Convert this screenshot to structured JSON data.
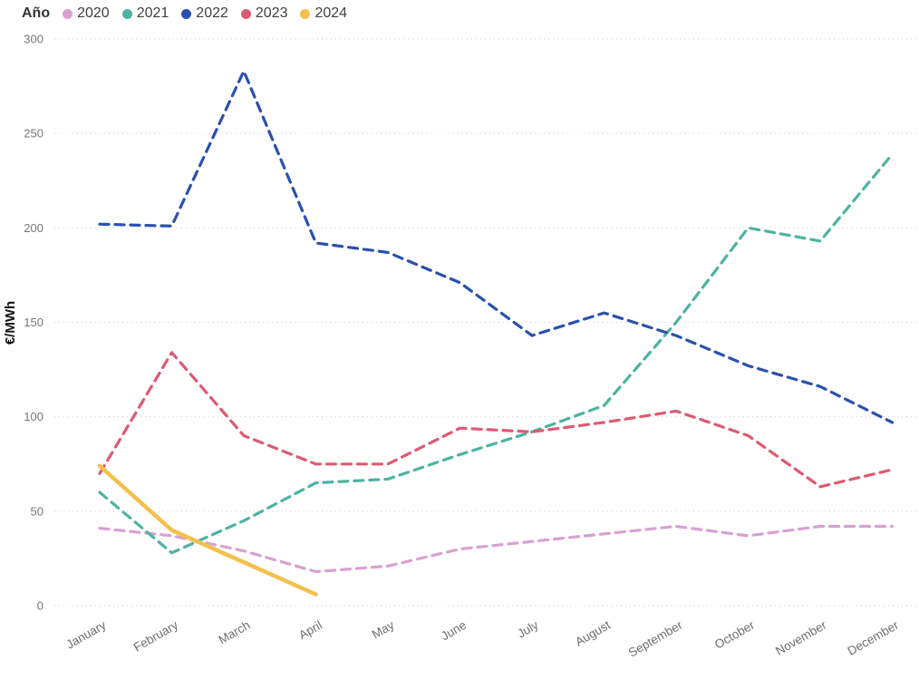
{
  "legend": {
    "title": "Año"
  },
  "chart_data": {
    "type": "line",
    "title": "",
    "legend_title": "Año",
    "legend_position": "top-left",
    "xlabel": "",
    "ylabel": "€/MWh",
    "ylim": [
      0,
      300
    ],
    "y_ticks": [
      0,
      50,
      100,
      150,
      200,
      250,
      300
    ],
    "grid": "horizontal-dotted",
    "categories": [
      "January",
      "February",
      "March",
      "April",
      "May",
      "June",
      "July",
      "August",
      "September",
      "October",
      "November",
      "December"
    ],
    "series": [
      {
        "name": "2020",
        "color": "#d9a0d2",
        "line_style": "dashed",
        "values": [
          41,
          37,
          29,
          18,
          21,
          30,
          34,
          38,
          42,
          37,
          42,
          42
        ]
      },
      {
        "name": "2021",
        "color": "#4db3a2",
        "line_style": "dashed",
        "values": [
          60,
          28,
          45,
          65,
          67,
          80,
          92,
          106,
          150,
          200,
          193,
          239
        ]
      },
      {
        "name": "2022",
        "color": "#2a51ad",
        "line_style": "dashed",
        "values": [
          202,
          201,
          283,
          192,
          187,
          171,
          143,
          155,
          143,
          127,
          116,
          97
        ]
      },
      {
        "name": "2023",
        "color": "#dd5a72",
        "line_style": "dashed",
        "values": [
          70,
          134,
          90,
          75,
          75,
          94,
          92,
          97,
          103,
          90,
          63,
          72
        ]
      },
      {
        "name": "2024",
        "color": "#f3c04d",
        "line_style": "solid",
        "values": [
          74,
          40,
          23,
          6,
          null,
          null,
          null,
          null,
          null,
          null,
          null,
          null
        ]
      }
    ]
  }
}
